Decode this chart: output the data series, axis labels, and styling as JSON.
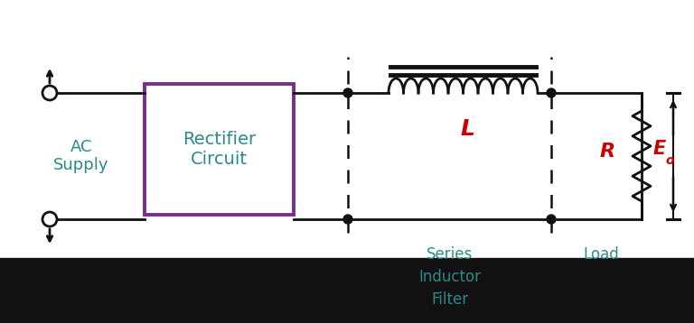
{
  "bg_color": "#ffffff",
  "black_bottom_color": "#111111",
  "teal_color": "#2a8a8a",
  "purple_color": "#7b2d8b",
  "red_color": "#cc0000",
  "line_color": "#111111",
  "fig_width": 7.68,
  "fig_height": 3.58,
  "rectifier_text": "Rectifier\nCircuit",
  "ac_supply_text": "AC\nSupply",
  "series_inductor_text": "Series\nInductor\nFilter",
  "load_text": "Load",
  "L_label": "L",
  "R_label": "R",
  "Eo_label": "E",
  "o_subscript": "o"
}
